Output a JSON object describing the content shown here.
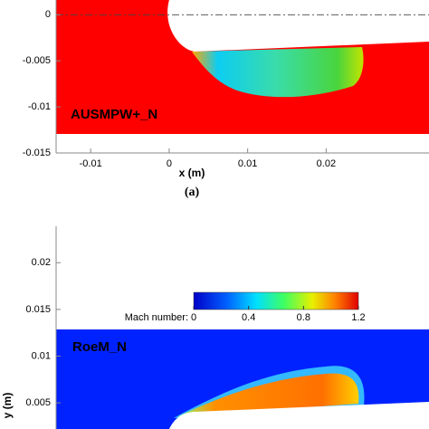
{
  "chart_data": [
    {
      "type": "contour",
      "annotation": "AUSMPW+_N",
      "x_label": "x (m)",
      "caption": "(a)",
      "xlim": [
        -0.0144,
        0.0331
      ],
      "ylim": [
        -0.015,
        0.0016
      ],
      "xticks": [
        -0.01,
        0,
        0.01,
        0.02
      ],
      "yticks": [
        0,
        -0.005,
        -0.01,
        -0.015
      ],
      "field_color": "#ff0000"
    },
    {
      "type": "contour",
      "annotation": "RoeM_N",
      "y_label": "y (m)",
      "xlim": [
        -0.0144,
        0.0331
      ],
      "ylim": [
        0.0022,
        0.0239
      ],
      "yticks": [
        0.02,
        0.015,
        0.01,
        0.005
      ],
      "field_color": "#0022ff",
      "colorbar": {
        "label": "Mach number:",
        "lim": [
          0,
          1.2
        ],
        "ticks": [
          0,
          0.4,
          0.8,
          1.2
        ]
      }
    }
  ]
}
